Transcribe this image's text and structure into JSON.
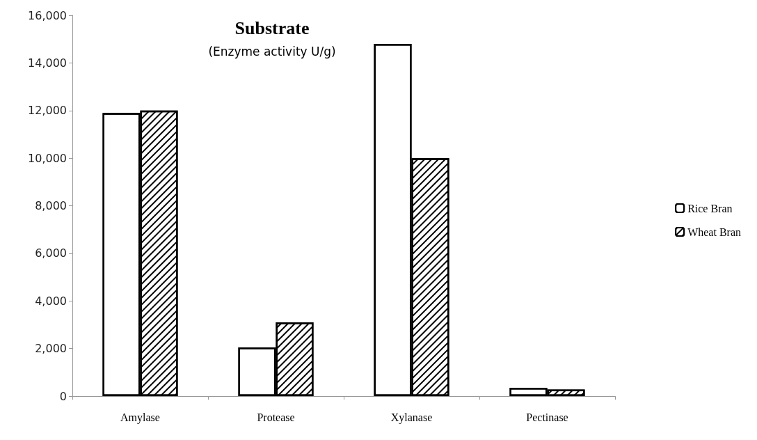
{
  "chart_data": {
    "type": "bar",
    "title": "Substrate",
    "subtitle": "(Enzyme activity U/g)",
    "categories": [
      "Amylase",
      "Protease",
      "Xylanase",
      "Pectinase"
    ],
    "series": [
      {
        "name": "Rice Bran",
        "color": "#ffffff",
        "values": [
          11900,
          2050,
          14800,
          350
        ]
      },
      {
        "name": "Wheat Bran",
        "color": "#ffffff",
        "values": [
          12000,
          3100,
          10000,
          280
        ]
      }
    ],
    "ylim": [
      0,
      16000
    ],
    "yticks": [
      {
        "value": 0,
        "label": "0"
      },
      {
        "value": 2000,
        "label": "2,000"
      },
      {
        "value": 4000,
        "label": "4,000"
      },
      {
        "value": 6000,
        "label": "6,000"
      },
      {
        "value": 8000,
        "label": "8,000"
      },
      {
        "value": 10000,
        "label": "10,000"
      },
      {
        "value": 12000,
        "label": "12,000"
      },
      {
        "value": 14000,
        "label": "14,000"
      },
      {
        "value": 16000,
        "label": "16,000"
      }
    ],
    "grid": false,
    "legend": "right"
  }
}
